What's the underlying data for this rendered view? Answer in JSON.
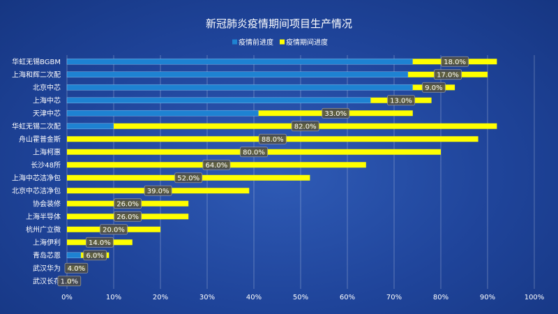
{
  "chart_data": {
    "type": "bar",
    "orientation": "horizontal",
    "stacked": true,
    "title": "新冠肺炎疫情期间项目生产情况",
    "xlabel": "",
    "ylabel": "",
    "xlim": [
      0,
      1
    ],
    "x_ticks": [
      "0%",
      "10%",
      "20%",
      "30%",
      "40%",
      "50%",
      "60%",
      "70%",
      "80%",
      "90%",
      "100%"
    ],
    "legend_position": "top",
    "categories": [
      "华虹无锡BGBM",
      "上海和辉二次配",
      "北京中芯",
      "上海中芯",
      "天津中芯",
      "华虹无锡二次配",
      "舟山霍普金斯",
      "上海柯惠",
      "长沙48所",
      "上海中芯洁净包",
      "北京中芯洁净包",
      "协会装修",
      "上海半导体",
      "杭州广立微",
      "上海伊利",
      "青岛芯恩",
      "武汉华为",
      "武汉长存"
    ],
    "series": [
      {
        "name": "疫情前进度",
        "color": "#1e82d2",
        "values": [
          0.74,
          0.73,
          0.74,
          0.65,
          0.41,
          0.1,
          0,
          0,
          0,
          0,
          0,
          0,
          0,
          0,
          0,
          0.03,
          0,
          0
        ]
      },
      {
        "name": "疫情期间进度",
        "color": "#ffff00",
        "values": [
          0.18,
          0.17,
          0.09,
          0.13,
          0.33,
          0.82,
          0.88,
          0.8,
          0.64,
          0.52,
          0.39,
          0.26,
          0.26,
          0.2,
          0.14,
          0.06,
          0.04,
          0.01
        ],
        "data_labels": [
          "18.0%",
          "17.0%",
          "9.0%",
          "13.0%",
          "33.0%",
          "82.0%",
          "88.0%",
          "80.0%",
          "64.0%",
          "52.0%",
          "39.0%",
          "26.0%",
          "26.0%",
          "20.0%",
          "14.0%",
          "6.0%",
          "4.0%",
          "1.0%"
        ]
      }
    ]
  }
}
